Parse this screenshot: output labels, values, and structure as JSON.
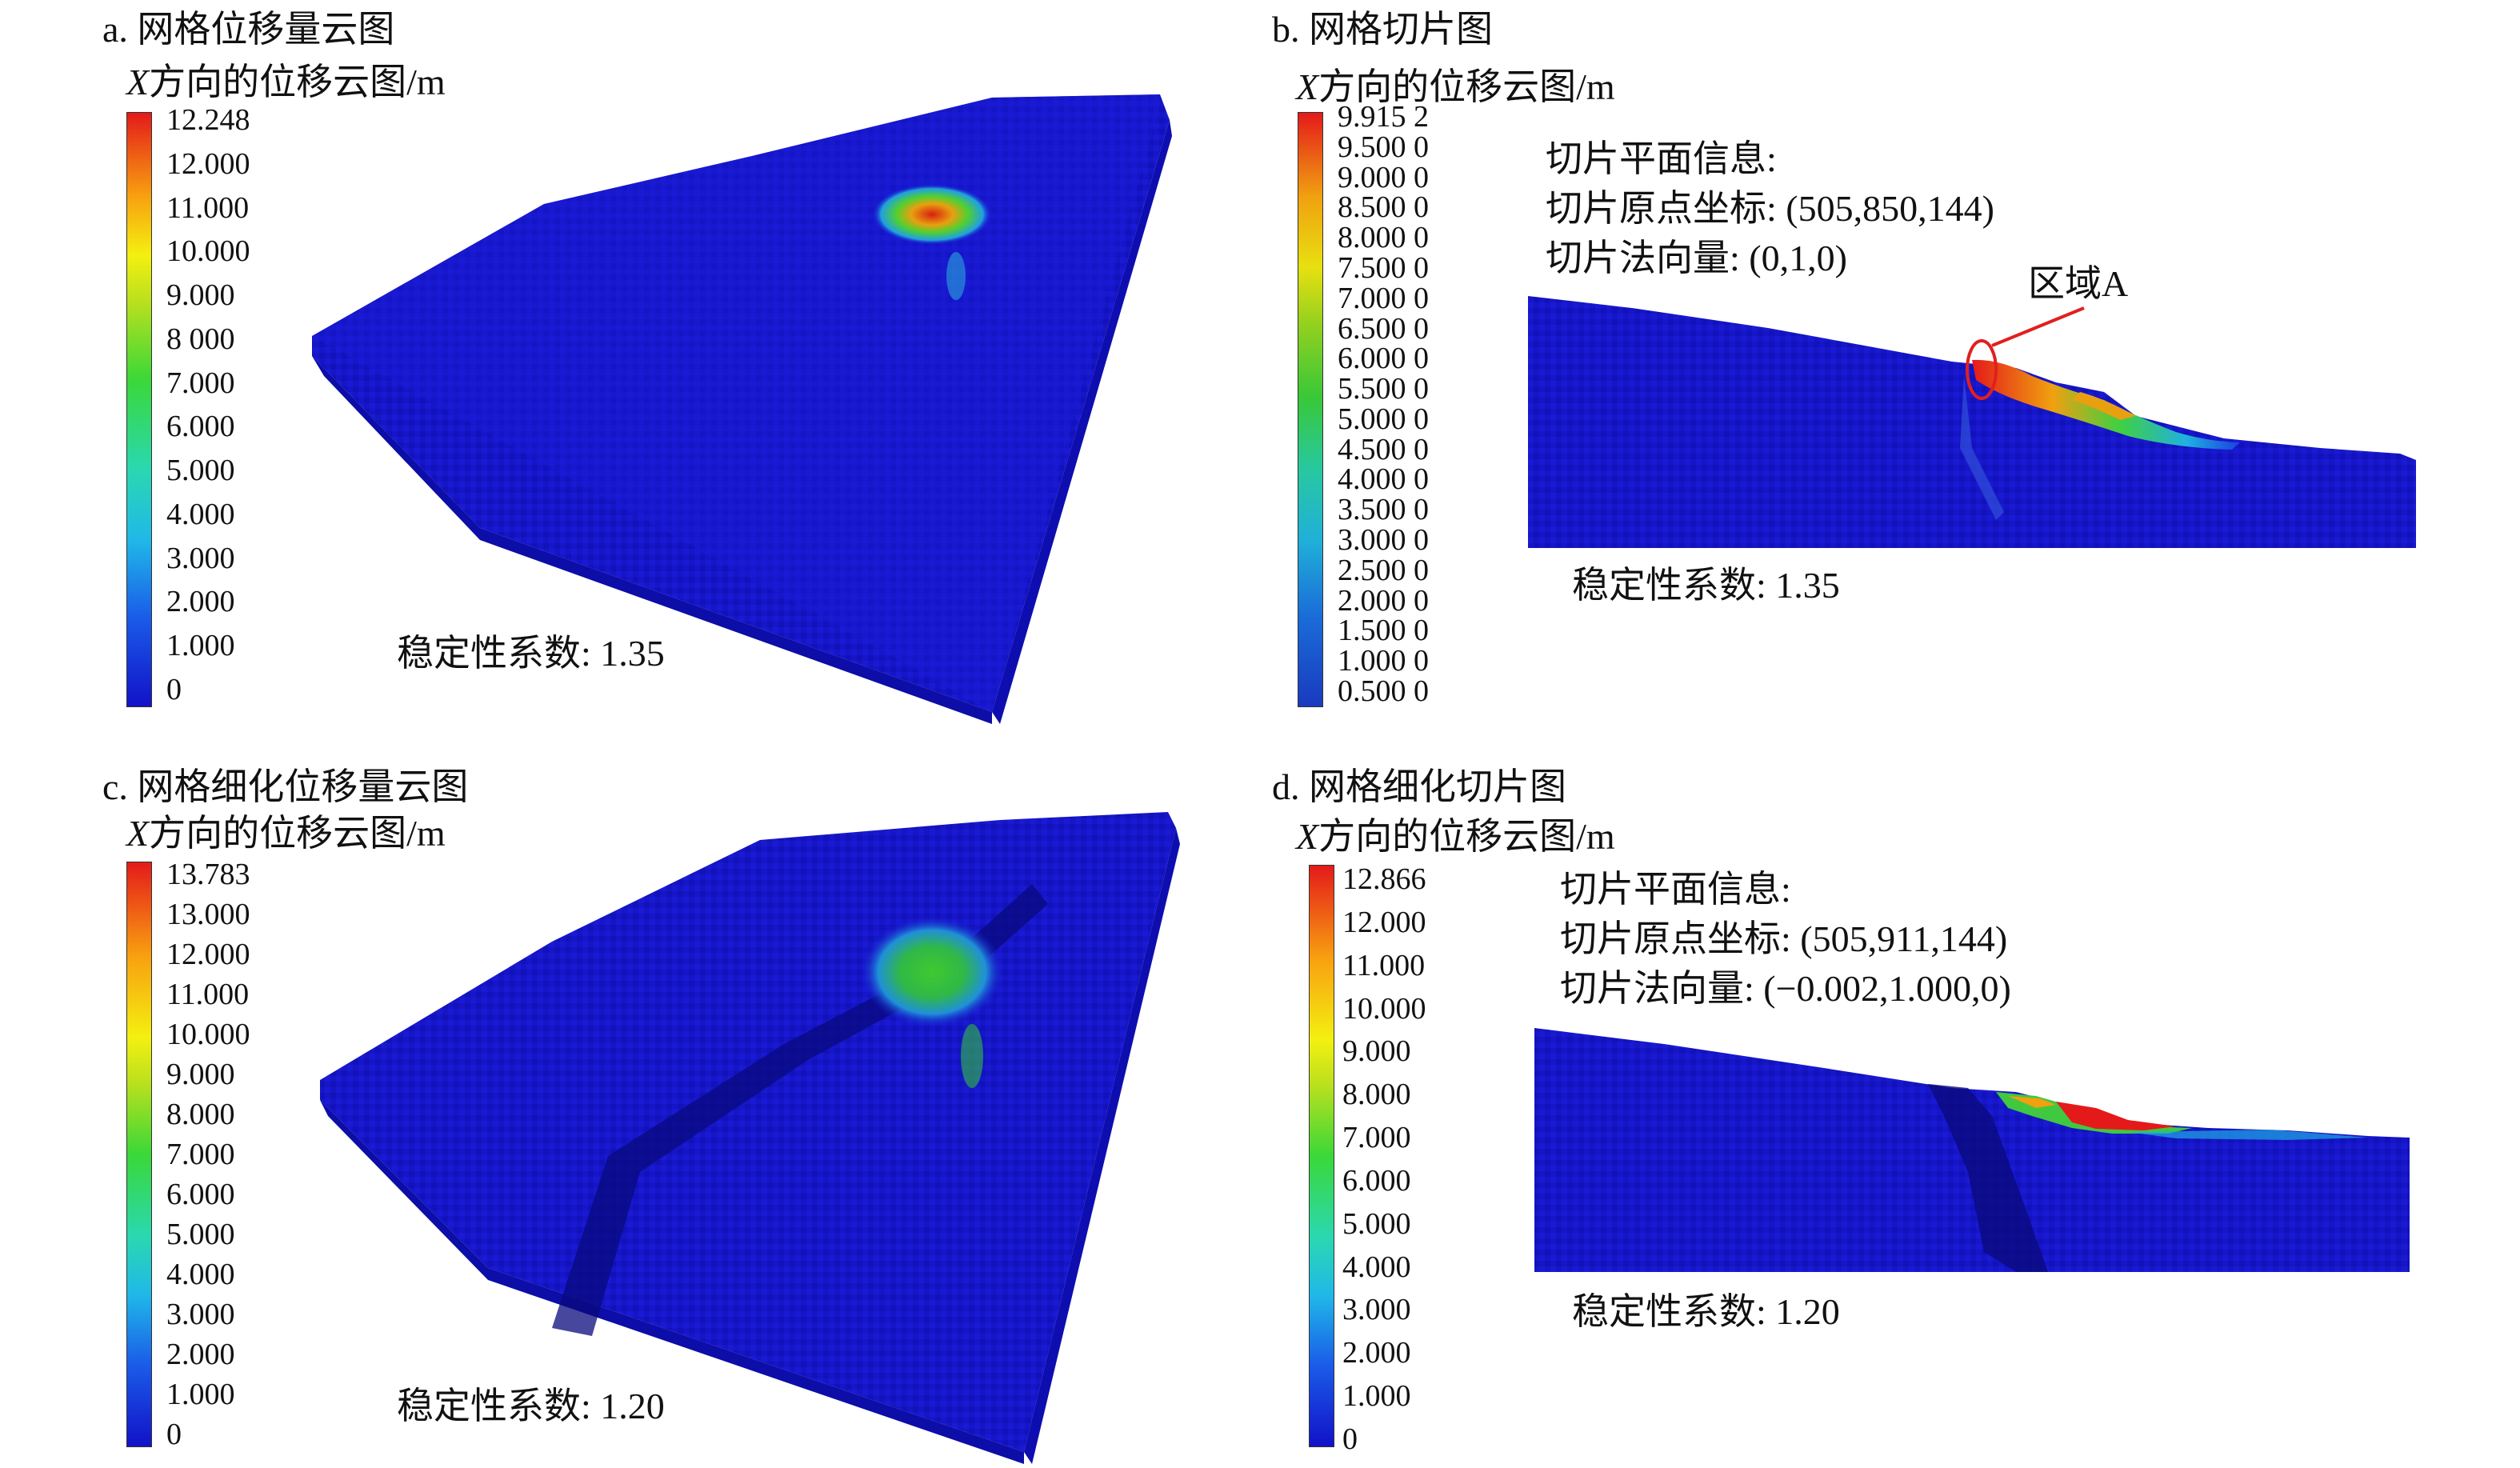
{
  "panels": [
    {
      "title": "a. 网格位移量云图",
      "colorbar_title": "X方向的位移云图/m",
      "ticks": [
        "12.248",
        "12.000",
        "11.000",
        "10.000",
        "9.000",
        "8 000",
        "7.000",
        "6.000",
        "5.000",
        "4.000",
        "3.000",
        "2.000",
        "1.000",
        "0"
      ],
      "stability": "稳定性系数: 1.35"
    },
    {
      "title": "b. 网格切片图",
      "colorbar_title": "X方向的位移云图/m",
      "ticks": [
        "9.915 2",
        "9.500 0",
        "9.000 0",
        "8.500 0",
        "8.000 0",
        "7.500 0",
        "7.000 0",
        "6.500 0",
        "6.000 0",
        "5.500 0",
        "5.000 0",
        "4.500 0",
        "4.000 0",
        "3.500 0",
        "3.000 0",
        "2.500 0",
        "2.000 0",
        "1.500 0",
        "1.000 0",
        "0.500 0"
      ],
      "slice_info": [
        "切片平面信息:",
        "切片原点坐标: (505,850,144)",
        "切片法向量: (0,1,0)"
      ],
      "annotation": "区域A",
      "stability": "稳定性系数: 1.35"
    },
    {
      "title": "c. 网格细化位移量云图",
      "colorbar_title": "X方向的位移云图/m",
      "ticks": [
        "13.783",
        "13.000",
        "12.000",
        "11.000",
        "10.000",
        "9.000",
        "8.000",
        "7.000",
        "6.000",
        "5.000",
        "4.000",
        "3.000",
        "2.000",
        "1.000",
        "0"
      ],
      "stability": "稳定性系数: 1.20"
    },
    {
      "title": "d. 网格细化切片图",
      "colorbar_title": "X方向的位移云图/m",
      "ticks": [
        "12.866",
        "12.000",
        "11.000",
        "10.000",
        "9.000",
        "8.000",
        "7.000",
        "6.000",
        "5.000",
        "4.000",
        "3.000",
        "2.000",
        "1.000",
        "0"
      ],
      "slice_info": [
        "切片平面信息:",
        "切片原点坐标: (505,911,144)",
        "切片法向量: (−0.002,1.000,0)"
      ],
      "stability": "稳定性系数: 1.20"
    }
  ],
  "colors": {
    "low": "#1a1ad6",
    "high": "#e41a1a"
  }
}
